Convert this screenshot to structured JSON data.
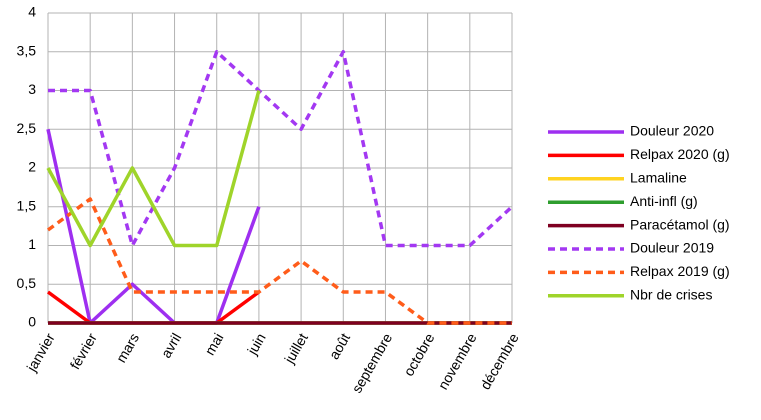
{
  "chart_data": {
    "type": "line",
    "categories": [
      "janvier",
      "février",
      "mars",
      "avril",
      "mai",
      "juin",
      "juillet",
      "août",
      "septembre",
      "octobre",
      "novembre",
      "décembre"
    ],
    "ylim": [
      0,
      4
    ],
    "yticks": [
      0,
      {
        "value": 0.5,
        "label": "0,5"
      },
      1,
      {
        "value": 1.5,
        "label": "1,5"
      },
      2,
      {
        "value": 2.5,
        "label": "2,5"
      },
      3,
      {
        "value": 3.5,
        "label": "3,5"
      },
      4
    ],
    "grid": true,
    "legend": "right",
    "series": [
      {
        "name": "Douleur 2020",
        "color": "#9e2ff0",
        "dash": false,
        "values": [
          2.5,
          0,
          0.5,
          0,
          0,
          1.5,
          null,
          null,
          null,
          null,
          null,
          null
        ]
      },
      {
        "name": "Relpax 2020 (g)",
        "color": "#ff0000",
        "dash": false,
        "values": [
          0.4,
          0,
          0,
          0,
          0,
          0.4,
          null,
          null,
          null,
          null,
          null,
          null
        ]
      },
      {
        "name": "Lamaline",
        "color": "#ffd320",
        "dash": false,
        "values": [
          0,
          0,
          0,
          0,
          0,
          0,
          0,
          0,
          0,
          0,
          0,
          0
        ]
      },
      {
        "name": "Anti-infl (g)",
        "color": "#2e9e2e",
        "dash": false,
        "values": [
          0,
          0,
          0,
          0,
          0,
          0,
          0,
          0,
          0,
          0,
          0,
          0
        ]
      },
      {
        "name": "Paracétamol (g)",
        "color": "#7e0021",
        "dash": false,
        "values": [
          0,
          0,
          0,
          0,
          0,
          0,
          0,
          0,
          0,
          0,
          0,
          0
        ]
      },
      {
        "name": "Douleur 2019",
        "color": "#a338f2",
        "dash": true,
        "values": [
          3,
          3,
          1,
          2,
          3.5,
          3,
          2.5,
          3.5,
          1,
          1,
          1,
          1.5
        ]
      },
      {
        "name": "Relpax 2019 (g)",
        "color": "#ff5c1a",
        "dash": true,
        "values": [
          1.2,
          1.6,
          0.4,
          0.4,
          0.4,
          0.4,
          0.8,
          0.4,
          0.4,
          0,
          0,
          0
        ]
      },
      {
        "name": "Nbr de crises",
        "color": "#9fd42a",
        "dash": false,
        "values": [
          2,
          1,
          2,
          1,
          1,
          3,
          null,
          null,
          null,
          null,
          null,
          null
        ]
      }
    ]
  }
}
